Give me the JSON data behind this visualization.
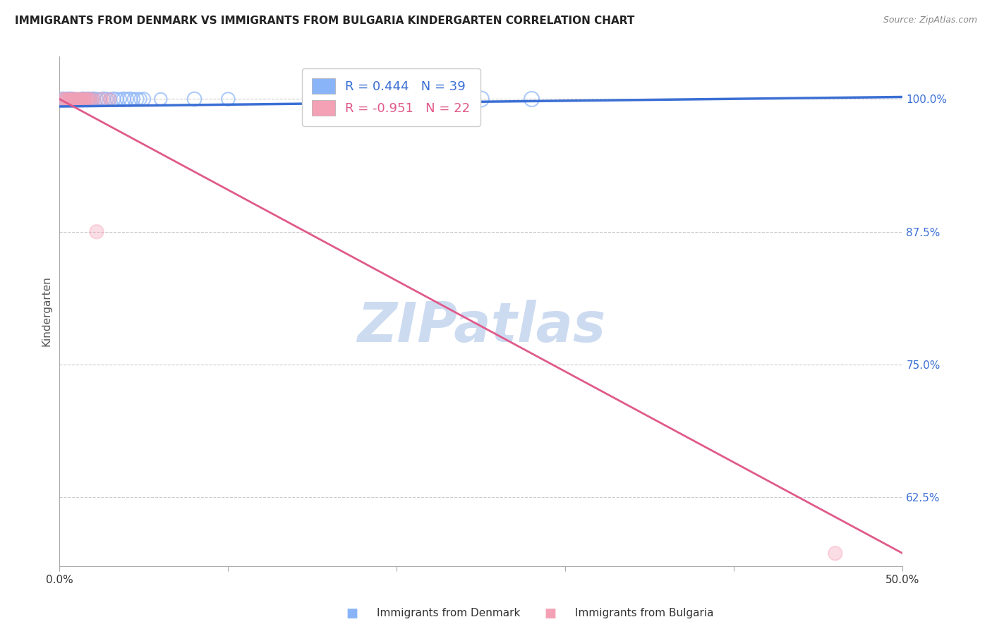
{
  "title": "IMMIGRANTS FROM DENMARK VS IMMIGRANTS FROM BULGARIA KINDERGARTEN CORRELATION CHART",
  "source": "Source: ZipAtlas.com",
  "ylabel": "Kindergarten",
  "xlim": [
    0.0,
    0.5
  ],
  "ylim": [
    0.56,
    1.04
  ],
  "yticks_right": [
    1.0,
    0.875,
    0.75,
    0.625
  ],
  "yticklabels_right": [
    "100.0%",
    "87.5%",
    "75.0%",
    "62.5%"
  ],
  "grid_color": "#cccccc",
  "background_color": "#ffffff",
  "denmark_color": "#8ab4f8",
  "bulgaria_color": "#f4a0b5",
  "denmark_line_color": "#3b6fd4",
  "bulgaria_line_color": "#e05a8a",
  "legend_R_label_denmark": "R = 0.444   N = 39",
  "legend_R_label_bulgaria": "R = -0.951   N = 22",
  "watermark": "ZIPatlas",
  "watermark_color": "#c8d8f0",
  "denmark_x": [
    0.002,
    0.003,
    0.004,
    0.005,
    0.006,
    0.007,
    0.008,
    0.009,
    0.01,
    0.011,
    0.012,
    0.013,
    0.014,
    0.015,
    0.016,
    0.017,
    0.018,
    0.019,
    0.02,
    0.022,
    0.024,
    0.026,
    0.028,
    0.03,
    0.032,
    0.034,
    0.036,
    0.038,
    0.04,
    0.042,
    0.044,
    0.046,
    0.048,
    0.05,
    0.06,
    0.08,
    0.1,
    0.25,
    0.28
  ],
  "denmark_y": [
    1.0,
    1.0,
    1.0,
    1.0,
    1.0,
    1.0,
    1.0,
    1.0,
    1.0,
    1.0,
    1.0,
    1.0,
    1.0,
    1.0,
    1.0,
    1.0,
    1.0,
    1.0,
    1.0,
    1.0,
    1.0,
    1.0,
    1.0,
    1.0,
    1.0,
    1.0,
    1.0,
    1.0,
    1.0,
    1.0,
    1.0,
    1.0,
    1.0,
    1.0,
    1.0,
    1.0,
    1.0,
    1.0,
    1.0
  ],
  "denmark_scatter_sizes": [
    200,
    180,
    160,
    200,
    180,
    200,
    160,
    180,
    160,
    150,
    160,
    180,
    200,
    160,
    180,
    200,
    160,
    180,
    200,
    180,
    160,
    200,
    180,
    160,
    200,
    180,
    160,
    200,
    180,
    200,
    160,
    180,
    160,
    180,
    160,
    200,
    180,
    250,
    230
  ],
  "bulgaria_x": [
    0.002,
    0.003,
    0.004,
    0.005,
    0.006,
    0.007,
    0.008,
    0.009,
    0.01,
    0.011,
    0.012,
    0.013,
    0.014,
    0.015,
    0.016,
    0.017,
    0.018,
    0.02,
    0.025,
    0.03,
    0.022,
    0.46
  ],
  "bulgaria_y": [
    1.0,
    1.0,
    1.0,
    1.0,
    1.0,
    1.0,
    1.0,
    1.0,
    1.0,
    1.0,
    1.0,
    1.0,
    1.0,
    1.0,
    1.0,
    1.0,
    1.0,
    1.0,
    1.0,
    1.0,
    0.875,
    0.572
  ],
  "bulgaria_scatter_sizes": [
    180,
    160,
    180,
    160,
    180,
    160,
    180,
    160,
    180,
    160,
    180,
    160,
    180,
    160,
    180,
    160,
    180,
    160,
    180,
    160,
    200,
    200
  ],
  "denmark_trend_x": [
    0.0,
    0.5
  ],
  "denmark_trend_y": [
    0.993,
    1.002
  ],
  "bulgaria_trend_x": [
    0.0,
    0.5
  ],
  "bulgaria_trend_y": [
    1.0,
    0.572
  ]
}
